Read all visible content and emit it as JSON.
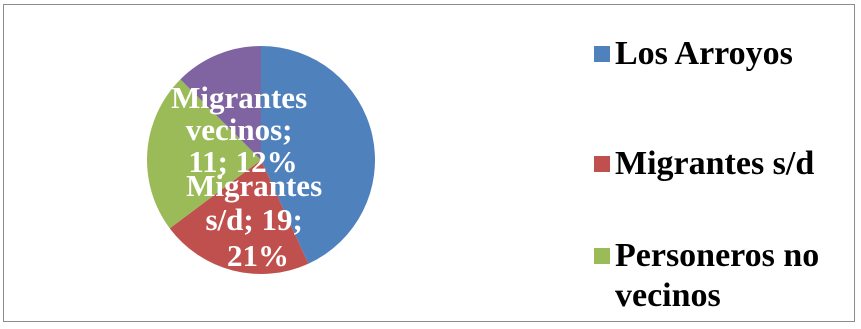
{
  "chart_data": {
    "type": "pie",
    "slices": [
      {
        "name": "Los Arroyos",
        "value": 38,
        "percent": 42,
        "color": "#4f81bd"
      },
      {
        "name": "Migrantes s/d",
        "value": 19,
        "percent": 21,
        "color": "#c0504d"
      },
      {
        "name": "Personeros no vecinos",
        "value": 20,
        "percent": 22,
        "color": "#9bbb59"
      },
      {
        "name": "Migrantes vecinos",
        "value": 11,
        "percent": 12,
        "color": "#8064a2"
      }
    ],
    "data_labels": [
      {
        "slice": "Migrantes vecinos",
        "lines": [
          "Migrantes",
          "vecinos;",
          "11; 12%"
        ]
      },
      {
        "slice": "Migrantes s/d",
        "lines": [
          "Migrantes",
          "s/d; 19;",
          "21%"
        ]
      }
    ],
    "legend": {
      "placement": "right",
      "entries": [
        {
          "label": "Los Arroyos",
          "color": "#4f81bd"
        },
        {
          "label": "Migrantes s/d",
          "color": "#c0504d"
        },
        {
          "label": "Personeros no vecinos",
          "color": "#9bbb59"
        }
      ]
    }
  }
}
